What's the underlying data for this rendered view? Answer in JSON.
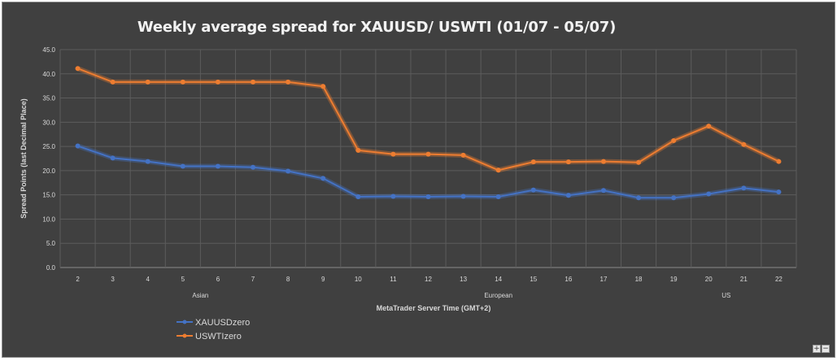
{
  "chart_data": {
    "type": "line",
    "title": "Weekly average spread for XAUUSD/ USWTI (01/07 - 05/07)",
    "xlabel": "MetaTrader Server Time (GMT+2)",
    "ylabel": "Spread Points  (last Decimal Place)",
    "ylim": [
      0,
      45
    ],
    "yticks": [
      "0.0",
      "5.0",
      "10.0",
      "15.0",
      "20.0",
      "25.0",
      "30.0",
      "35.0",
      "40.0",
      "45.0"
    ],
    "categories": [
      "2",
      "3",
      "4",
      "5",
      "6",
      "7",
      "8",
      "9",
      "10",
      "11",
      "12",
      "13",
      "14",
      "15",
      "16",
      "17",
      "18",
      "19",
      "20",
      "21",
      "22"
    ],
    "sessions": [
      {
        "label": "Asian",
        "from": 0,
        "to": 7
      },
      {
        "label": "European",
        "from": 8,
        "to": 16
      },
      {
        "label": "US",
        "from": 17,
        "to": 20
      }
    ],
    "grid": true,
    "legend": "bottom-left",
    "series": [
      {
        "name": "XAUUSDzero",
        "color": "#4472c4",
        "values": [
          25.1,
          22.6,
          21.9,
          20.9,
          20.9,
          20.7,
          19.9,
          18.4,
          14.6,
          14.7,
          14.6,
          14.7,
          14.6,
          16.0,
          14.9,
          15.9,
          14.4,
          14.4,
          15.2,
          16.4,
          15.6
        ]
      },
      {
        "name": "USWTIzero",
        "color": "#ed7d31",
        "values": [
          41.1,
          38.3,
          38.3,
          38.3,
          38.3,
          38.3,
          38.3,
          37.4,
          24.2,
          23.4,
          23.4,
          23.2,
          20.1,
          21.8,
          21.8,
          21.9,
          21.7,
          26.2,
          29.2,
          25.4,
          21.9
        ]
      }
    ]
  },
  "controls": {
    "zoom_in": "+",
    "zoom_out": "−"
  }
}
